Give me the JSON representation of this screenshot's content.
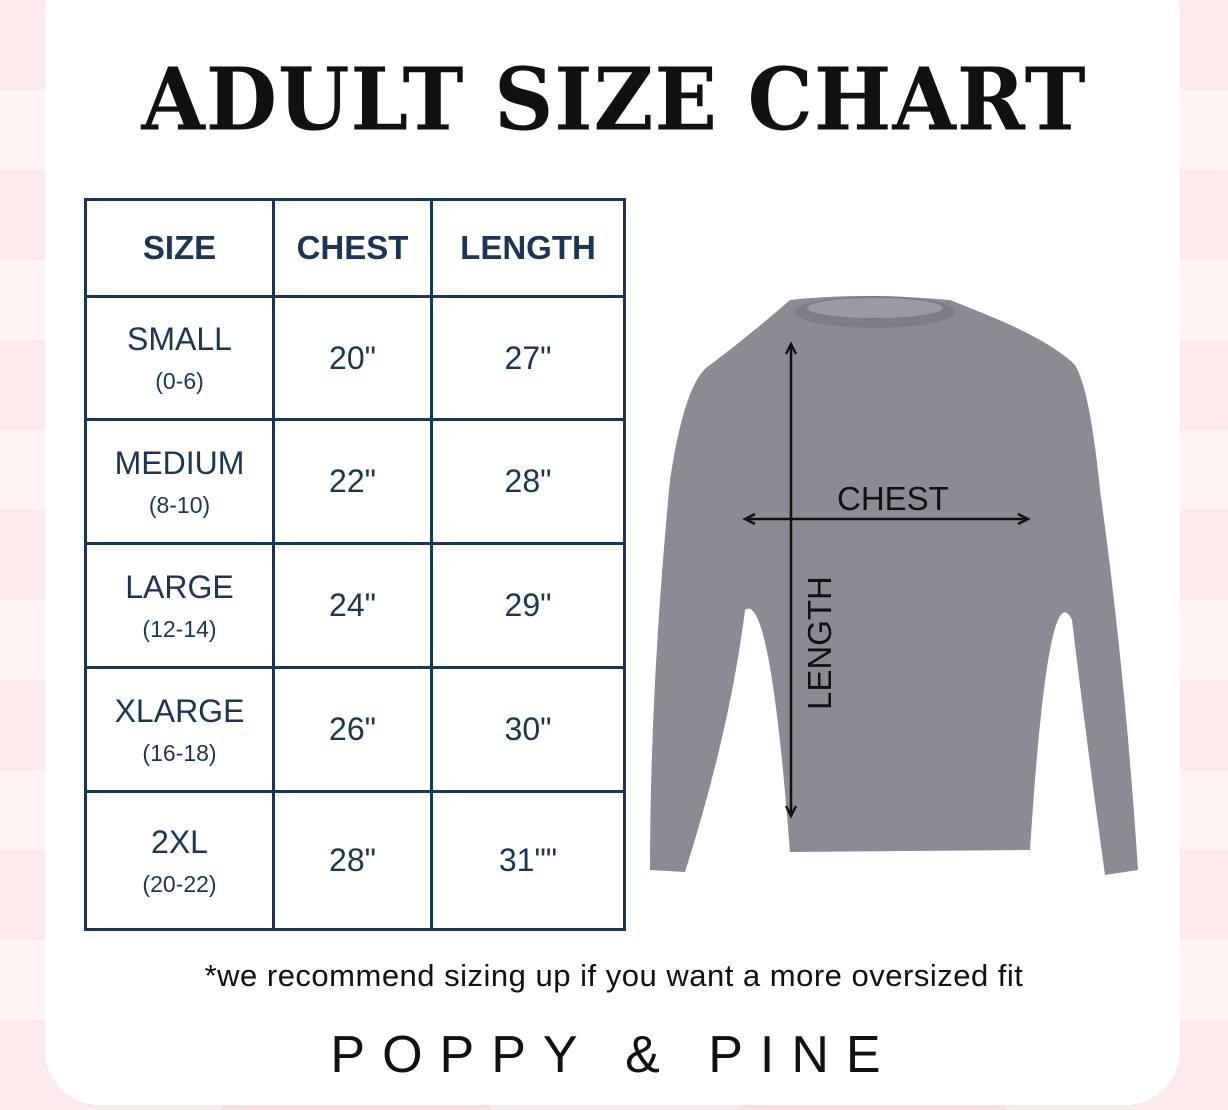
{
  "title": "ADULT SIZE CHART",
  "table": {
    "headers": [
      "SIZE",
      "CHEST",
      "LENGTH"
    ],
    "rows": [
      {
        "size": "SMALL",
        "range": "(0-6)",
        "chest": "20\"",
        "length": "27\""
      },
      {
        "size": "MEDIUM",
        "range": "(8-10)",
        "chest": "22\"",
        "length": "28\""
      },
      {
        "size": "LARGE",
        "range": "(12-14)",
        "chest": "24\"",
        "length": "29\""
      },
      {
        "size": "XLARGE",
        "range": "(16-18)",
        "chest": "26\"",
        "length": "30\""
      },
      {
        "size": "2XL",
        "range": "(20-22)",
        "chest": "28\"",
        "length": "31\"\""
      }
    ]
  },
  "diagram": {
    "chest_label": "CHEST",
    "length_label": "LENGTH",
    "garment_color": "#8b8b93"
  },
  "note": "*we recommend sizing up if you want a more oversized fit",
  "brand": "POPPY & PINE",
  "colors": {
    "table": "#1c3557",
    "background": "#fbdfe0"
  }
}
